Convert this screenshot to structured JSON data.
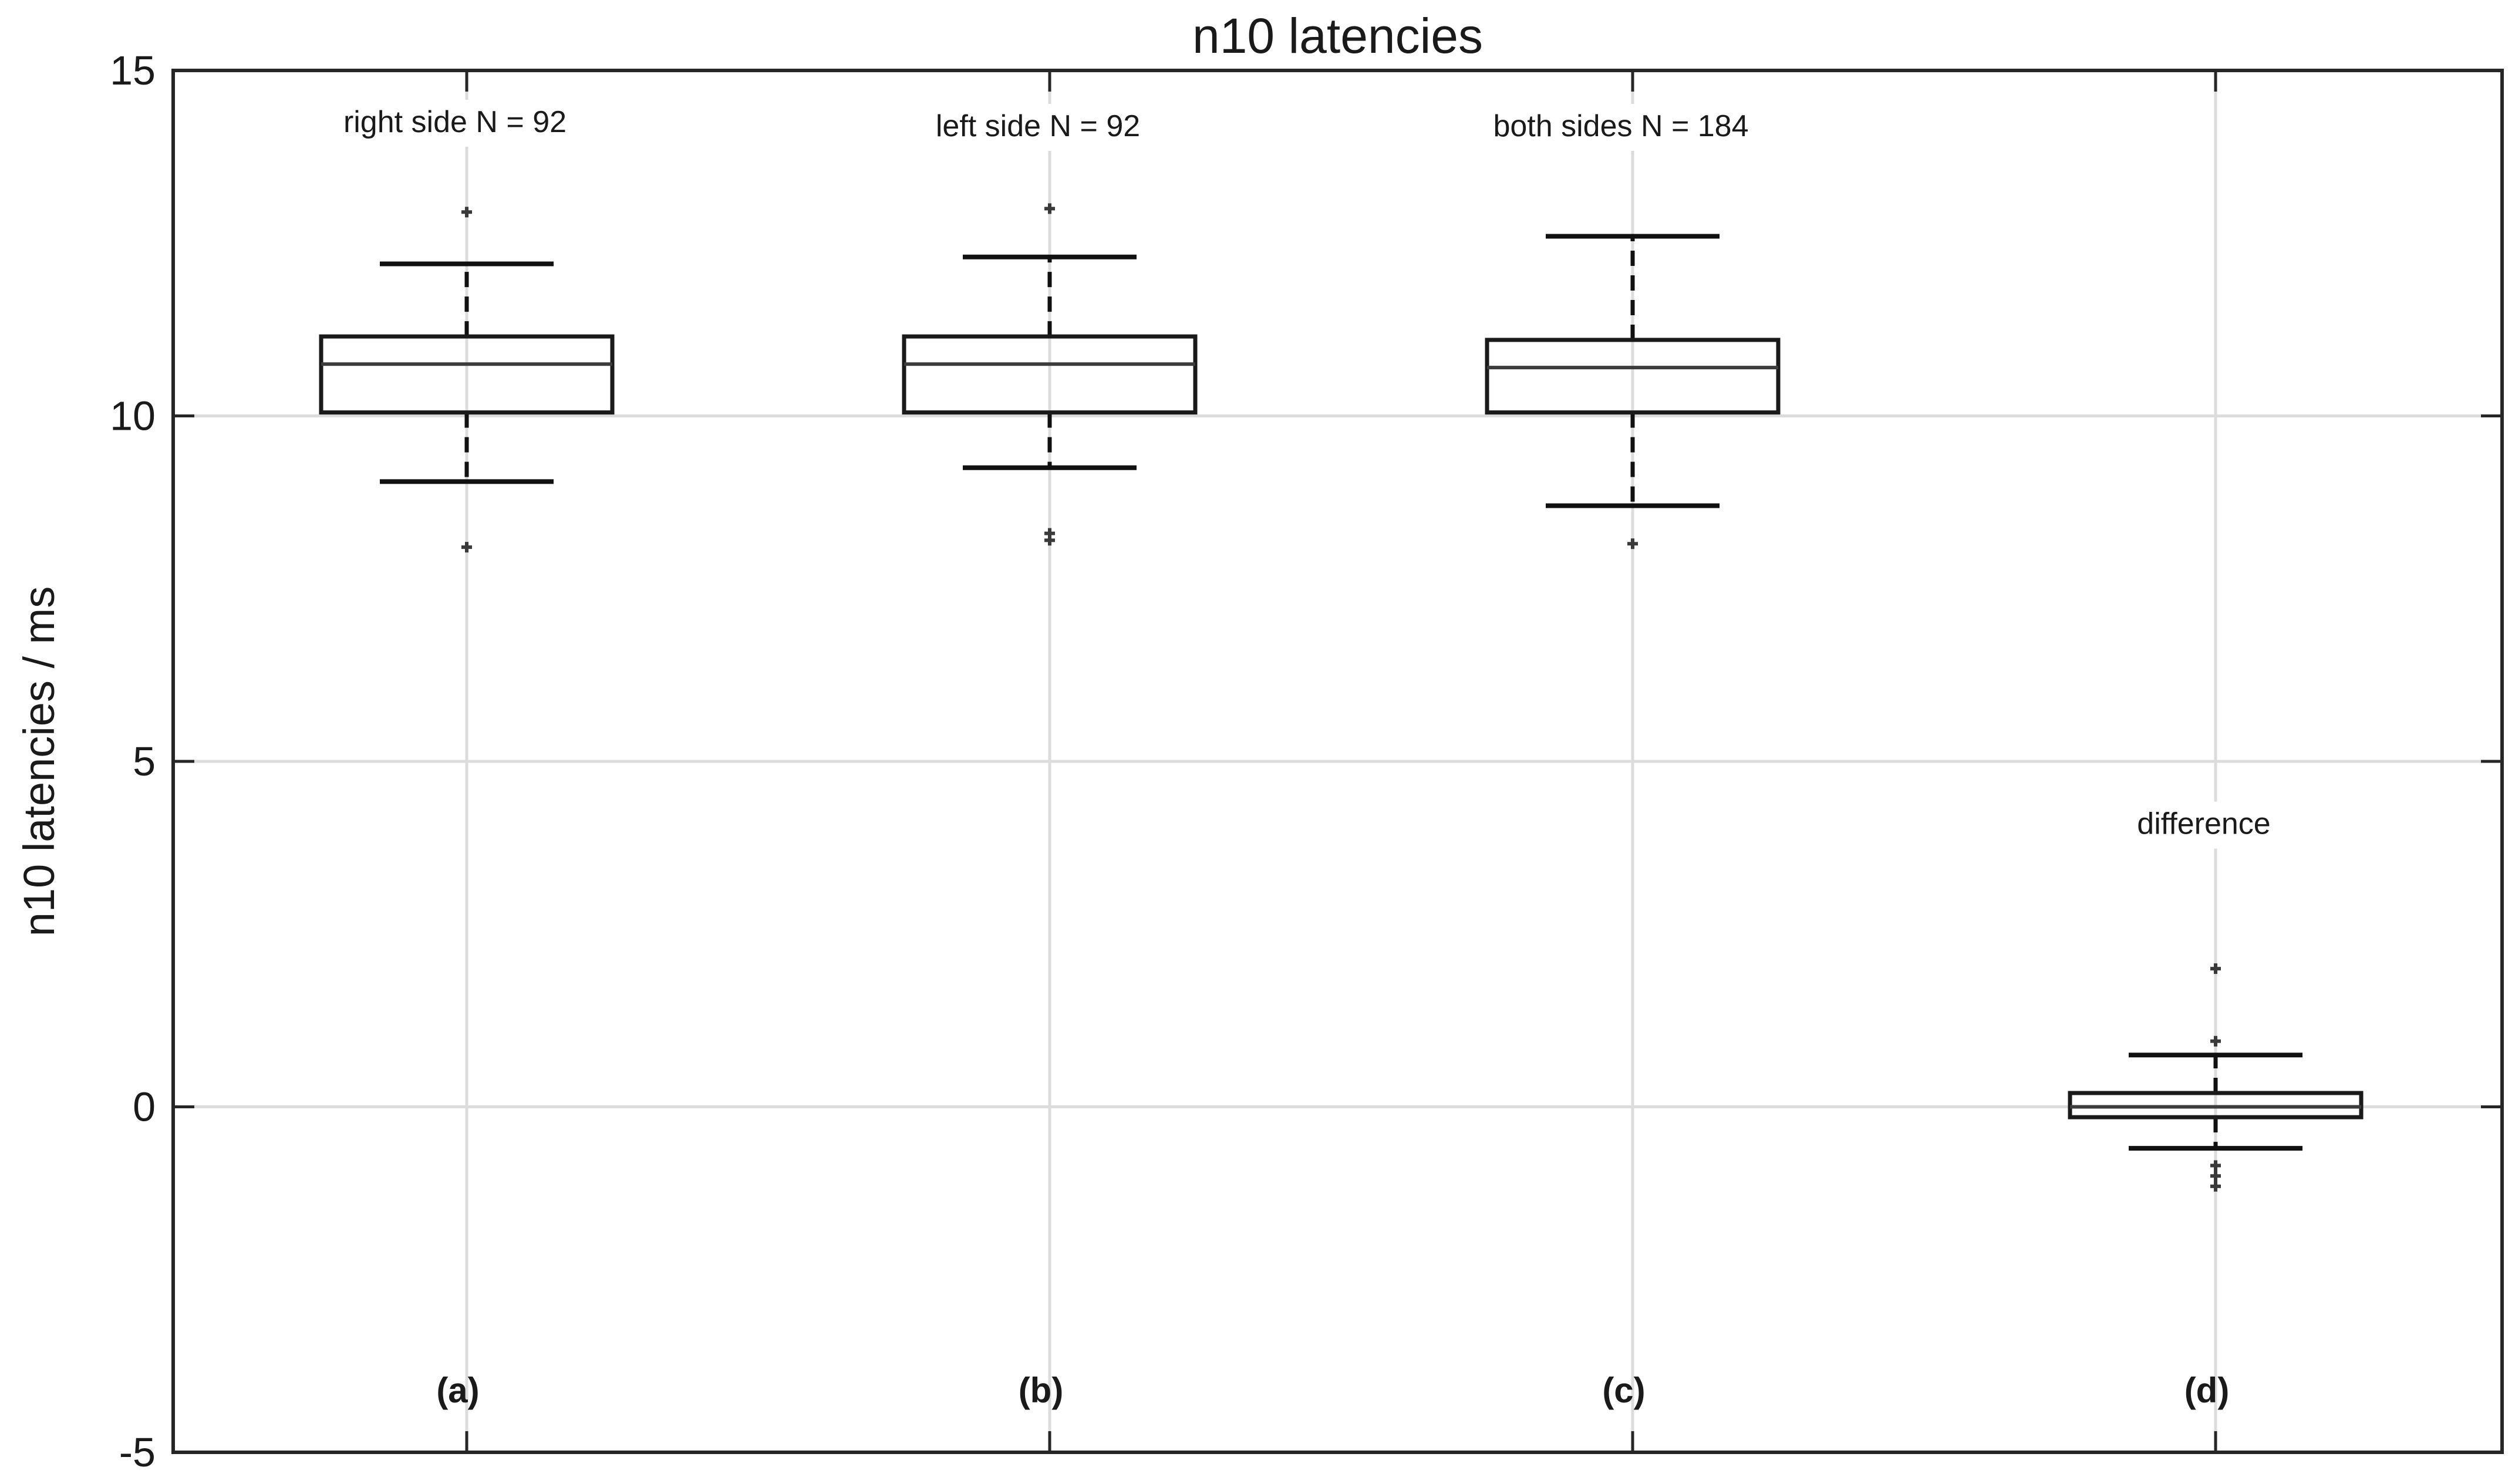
{
  "chart_data": {
    "type": "boxplot",
    "title": "n10 latencies",
    "ylabel": "n10 latencies / ms",
    "xlabel": "",
    "ylim": [
      -5,
      15
    ],
    "yticks": [
      -5,
      0,
      5,
      10,
      15
    ],
    "grid": true,
    "boxes": [
      {
        "label": "(a)",
        "annotation": "right side N = 92",
        "q1": 10.05,
        "median": 10.75,
        "q3": 11.15,
        "whisker_low": 9.05,
        "whisker_high": 12.2,
        "outliers": [
          8.1,
          12.95
        ]
      },
      {
        "label": "(b)",
        "annotation": "left side N = 92",
        "q1": 10.05,
        "median": 10.75,
        "q3": 11.15,
        "whisker_low": 9.25,
        "whisker_high": 12.3,
        "outliers": [
          8.2,
          8.3,
          13.0
        ]
      },
      {
        "label": "(c)",
        "annotation": "both sides N = 184",
        "q1": 10.05,
        "median": 10.7,
        "q3": 11.1,
        "whisker_low": 8.7,
        "whisker_high": 12.6,
        "outliers": [
          8.15
        ]
      },
      {
        "label": "(d)",
        "annotation": "difference",
        "q1": -0.15,
        "median": 0.0,
        "q3": 0.2,
        "whisker_low": -0.6,
        "whisker_high": 0.75,
        "outliers": [
          -1.15,
          -1.0,
          -0.85,
          0.95,
          2.0
        ]
      }
    ]
  }
}
